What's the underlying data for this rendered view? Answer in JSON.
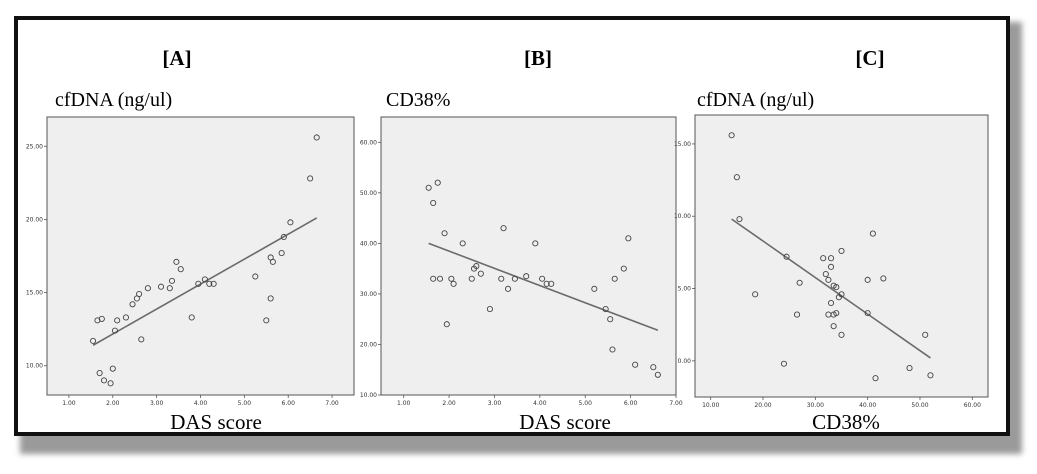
{
  "chart_data": [
    {
      "type": "scatter",
      "panel": "[A]",
      "ylabel": "cfDNA (ng/ul)",
      "xlabel": "DAS score",
      "xlim": [
        0.5,
        7.5
      ],
      "ylim": [
        8.0,
        27.0
      ],
      "xticks": [
        1,
        2,
        3,
        4,
        5,
        6,
        7
      ],
      "xtick_labels": [
        "1.00",
        "2.00",
        "3.00",
        "4.00",
        "5.00",
        "6.00",
        "7.00"
      ],
      "yticks": [
        10,
        15,
        20,
        25
      ],
      "ytick_labels": [
        "10.00",
        "15.00",
        "20.00",
        "25.00"
      ],
      "fit_line": [
        [
          1.55,
          11.4
        ],
        [
          6.65,
          20.1
        ]
      ],
      "points": [
        [
          1.55,
          11.7
        ],
        [
          1.65,
          13.1
        ],
        [
          1.75,
          13.2
        ],
        [
          1.7,
          9.5
        ],
        [
          1.8,
          9.0
        ],
        [
          1.95,
          8.8
        ],
        [
          2.0,
          9.8
        ],
        [
          2.05,
          12.4
        ],
        [
          2.1,
          13.1
        ],
        [
          2.3,
          13.3
        ],
        [
          2.45,
          14.2
        ],
        [
          2.55,
          14.6
        ],
        [
          2.6,
          14.9
        ],
        [
          2.65,
          11.8
        ],
        [
          2.8,
          15.3
        ],
        [
          3.1,
          15.4
        ],
        [
          3.3,
          15.3
        ],
        [
          3.35,
          15.8
        ],
        [
          3.45,
          17.1
        ],
        [
          3.55,
          16.6
        ],
        [
          3.8,
          13.3
        ],
        [
          3.95,
          15.6
        ],
        [
          4.1,
          15.9
        ],
        [
          4.2,
          15.6
        ],
        [
          4.3,
          15.6
        ],
        [
          5.25,
          16.1
        ],
        [
          5.5,
          13.1
        ],
        [
          5.6,
          14.6
        ],
        [
          5.6,
          17.4
        ],
        [
          5.65,
          17.1
        ],
        [
          5.85,
          17.7
        ],
        [
          5.9,
          18.8
        ],
        [
          6.05,
          19.8
        ],
        [
          6.5,
          22.8
        ],
        [
          6.65,
          25.6
        ]
      ]
    },
    {
      "type": "scatter",
      "panel": "[B]",
      "ylabel": "CD38%",
      "xlabel": "DAS score",
      "xlim": [
        0.5,
        7.0
      ],
      "ylim": [
        10.0,
        65.0
      ],
      "xticks": [
        1,
        2,
        3,
        4,
        5,
        6,
        7
      ],
      "xtick_labels": [
        "1.00",
        "2.00",
        "3.00",
        "4.00",
        "5.00",
        "6.00",
        "7.00"
      ],
      "yticks": [
        10,
        20,
        30,
        40,
        50,
        60
      ],
      "ytick_labels": [
        "10.00",
        "20.00",
        "30.00",
        "40.00",
        "50.00",
        "60.00"
      ],
      "fit_line": [
        [
          1.55,
          40.0
        ],
        [
          6.6,
          22.8
        ]
      ],
      "points": [
        [
          1.55,
          51.0
        ],
        [
          1.65,
          48.0
        ],
        [
          1.75,
          52.0
        ],
        [
          1.65,
          33.0
        ],
        [
          1.8,
          33.0
        ],
        [
          1.9,
          42.0
        ],
        [
          1.95,
          24.0
        ],
        [
          2.05,
          33.0
        ],
        [
          2.1,
          32.0
        ],
        [
          2.3,
          40.0
        ],
        [
          2.5,
          33.0
        ],
        [
          2.55,
          35.0
        ],
        [
          2.6,
          35.5
        ],
        [
          2.7,
          34.0
        ],
        [
          2.9,
          27.0
        ],
        [
          3.15,
          33.0
        ],
        [
          3.2,
          43.0
        ],
        [
          3.3,
          31.0
        ],
        [
          3.45,
          33.0
        ],
        [
          3.7,
          33.5
        ],
        [
          3.9,
          40.0
        ],
        [
          4.05,
          33.0
        ],
        [
          4.15,
          32.0
        ],
        [
          4.25,
          32.0
        ],
        [
          5.2,
          31.0
        ],
        [
          5.45,
          27.0
        ],
        [
          5.55,
          25.0
        ],
        [
          5.6,
          19.0
        ],
        [
          5.65,
          33.0
        ],
        [
          5.85,
          35.0
        ],
        [
          5.95,
          41.0
        ],
        [
          6.1,
          16.0
        ],
        [
          6.5,
          15.5
        ],
        [
          6.6,
          14.0
        ]
      ]
    },
    {
      "type": "scatter",
      "panel": "[C]",
      "ylabel": "cfDNA (ng/ul)",
      "xlabel": "CD38%",
      "xlim": [
        7.0,
        63.0
      ],
      "ylim": [
        -2.5,
        17.0
      ],
      "xticks": [
        10,
        20,
        30,
        40,
        50,
        60
      ],
      "xtick_labels": [
        "10.00",
        "20.00",
        "30.00",
        "40.00",
        "50.00",
        "60.00"
      ],
      "yticks": [
        0,
        5,
        10,
        15
      ],
      "ytick_labels": [
        "0.00",
        "5.00",
        "10.00",
        "15.00"
      ],
      "fit_line": [
        [
          14.0,
          9.8
        ],
        [
          52.0,
          0.2
        ]
      ],
      "points": [
        [
          14.0,
          15.6
        ],
        [
          15.0,
          12.7
        ],
        [
          15.5,
          9.8
        ],
        [
          18.5,
          4.6
        ],
        [
          24.0,
          -0.2
        ],
        [
          24.5,
          7.2
        ],
        [
          26.5,
          3.2
        ],
        [
          27.0,
          5.4
        ],
        [
          31.5,
          7.1
        ],
        [
          32.0,
          6.0
        ],
        [
          32.5,
          3.2
        ],
        [
          32.5,
          5.6
        ],
        [
          33.0,
          4.0
        ],
        [
          33.0,
          6.5
        ],
        [
          33.0,
          7.1
        ],
        [
          33.5,
          3.2
        ],
        [
          33.5,
          5.2
        ],
        [
          33.5,
          2.4
        ],
        [
          34.0,
          3.3
        ],
        [
          34.0,
          5.1
        ],
        [
          34.5,
          4.4
        ],
        [
          35.0,
          4.6
        ],
        [
          35.0,
          7.6
        ],
        [
          35.0,
          1.8
        ],
        [
          40.0,
          5.6
        ],
        [
          40.0,
          3.3
        ],
        [
          41.0,
          8.8
        ],
        [
          41.5,
          -1.2
        ],
        [
          43.0,
          5.7
        ],
        [
          48.0,
          -0.5
        ],
        [
          51.0,
          1.8
        ],
        [
          52.0,
          -1.0
        ]
      ]
    }
  ]
}
